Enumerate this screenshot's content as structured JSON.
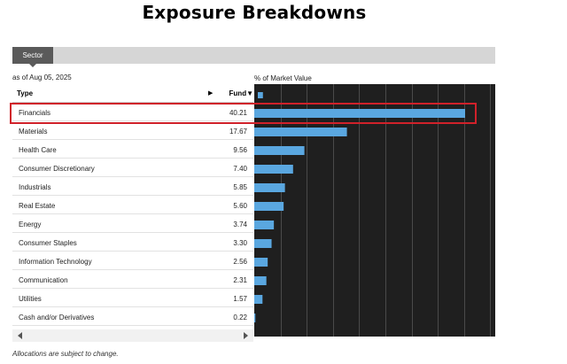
{
  "page": {
    "title": "Exposure Breakdowns",
    "tab_label": "Sector",
    "as_of": "as of Aug 05, 2025",
    "market_value_label": "% of Market Value",
    "col_type": "Type",
    "col_fund": "Fund",
    "sort_icon": "triangle-right-icon",
    "footnote": "Allocations are subject to change."
  },
  "colors": {
    "bar": "#5aa7e0",
    "chart_bg": "#1f1f1f",
    "highlight": "#d0212a"
  },
  "chart_data": {
    "type": "bar",
    "orientation": "horizontal",
    "categories": [
      "Financials",
      "Materials",
      "Health Care",
      "Consumer Discretionary",
      "Industrials",
      "Real Estate",
      "Energy",
      "Consumer Staples",
      "Information Technology",
      "Communication",
      "Utilities",
      "Cash and/or Derivatives"
    ],
    "values": [
      40.21,
      17.67,
      9.56,
      7.4,
      5.85,
      5.6,
      3.74,
      3.3,
      2.56,
      2.31,
      1.57,
      0.22
    ],
    "value_labels": [
      "40.21",
      "17.67",
      "9.56",
      "7.40",
      "5.85",
      "5.60",
      "3.74",
      "3.30",
      "2.56",
      "2.31",
      "1.57",
      "0.22"
    ],
    "header_bar_value": 1.5,
    "xlim": [
      0,
      45
    ],
    "grid": true,
    "highlighted_category": "Financials"
  }
}
